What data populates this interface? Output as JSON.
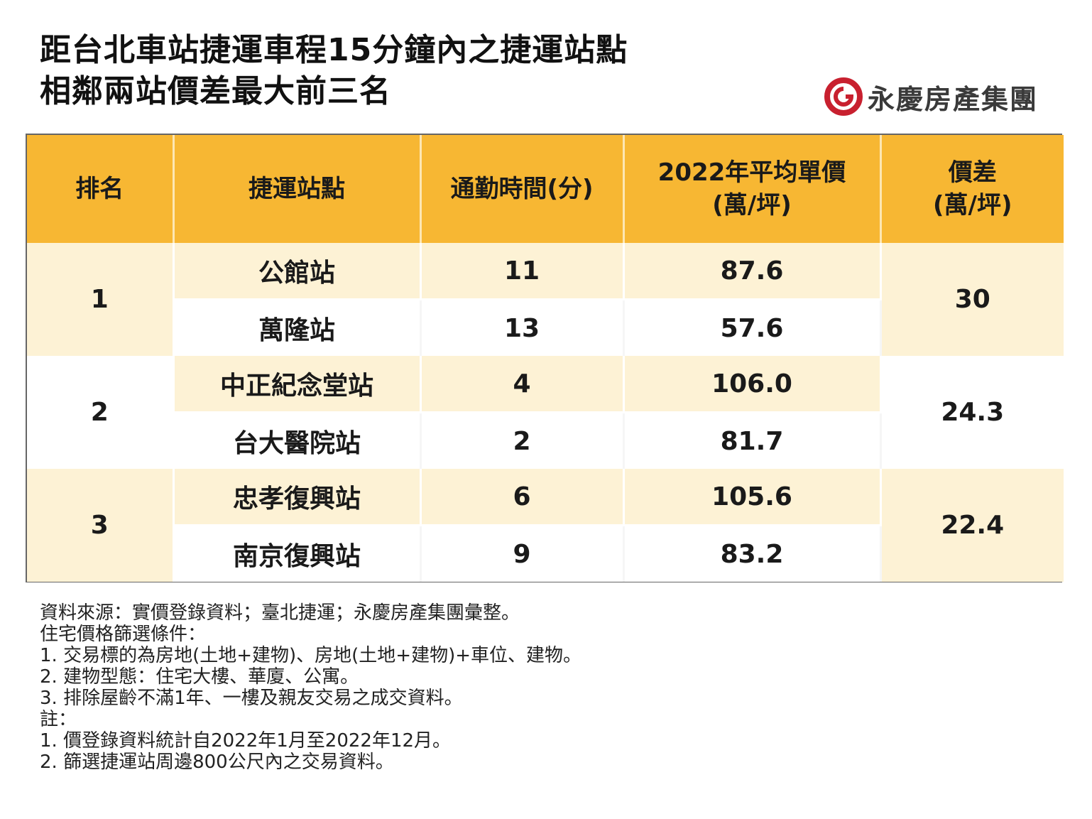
{
  "title": {
    "line1": "距台北車站捷運車程15分鐘內之捷運站點",
    "line2": "相鄰兩站價差最大前三名"
  },
  "logo": {
    "icon": "yungching-logo-icon",
    "text": "永慶房產集團",
    "color": "#c8202f"
  },
  "table": {
    "headers": {
      "rank": "排名",
      "station": "捷運站點",
      "commute": "通勤時間(分)",
      "price_l1": "2022年平均單價",
      "price_l2": "(萬/坪)",
      "diff_l1": "價差",
      "diff_l2": "(萬/坪)"
    },
    "groups": [
      {
        "rank": "1",
        "diff": "30",
        "rows": [
          {
            "station": "公館站",
            "commute": "11",
            "price": "87.6"
          },
          {
            "station": "萬隆站",
            "commute": "13",
            "price": "57.6"
          }
        ]
      },
      {
        "rank": "2",
        "diff": "24.3",
        "rows": [
          {
            "station": "中正紀念堂站",
            "commute": "4",
            "price": "106.0"
          },
          {
            "station": "台大醫院站",
            "commute": "2",
            "price": "81.7"
          }
        ]
      },
      {
        "rank": "3",
        "diff": "22.4",
        "rows": [
          {
            "station": "忠孝復興站",
            "commute": "6",
            "price": "105.6"
          },
          {
            "station": "南京復興站",
            "commute": "9",
            "price": "83.2"
          }
        ]
      }
    ]
  },
  "notes": [
    "資料來源：實價登錄資料；臺北捷運；永慶房產集團彙整。",
    "住宅價格篩選條件：",
    "1.  交易標的為房地(土地+建物)、房地(土地+建物)+車位、建物。",
    "2.  建物型態：住宅大樓、華廈、公寓。",
    "3.  排除屋齡不滿1年、一樓及親友交易之成交資料。",
    "註：",
    "1.  價登錄資料統計自2022年1月至2022年12月。",
    "2.  篩選捷運站周邊800公尺內之交易資料。"
  ],
  "colors": {
    "header": "#f7b733",
    "band": "#fdf2d5"
  }
}
